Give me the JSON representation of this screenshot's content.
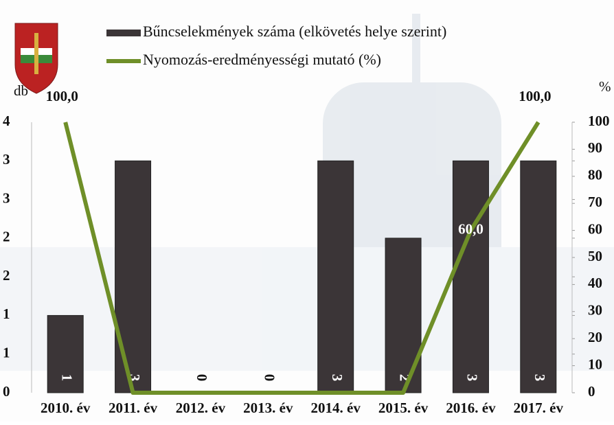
{
  "chart_data": {
    "type": "bar-line",
    "categories": [
      "2010. év",
      "2011. év",
      "2012. év",
      "2013. év",
      "2014. év",
      "2015. év",
      "2016. év",
      "2017. év"
    ],
    "series": [
      {
        "name": "Bűncselekmények száma (elkövetés helye szerint)",
        "type": "bar",
        "color": "#3b3537",
        "values": [
          1,
          3,
          0,
          0,
          3,
          2,
          3,
          3
        ]
      },
      {
        "name": "Nyomozás-eredményességi mutató (%)",
        "type": "line",
        "axis": "y2",
        "color": "#6f8f28",
        "values": [
          100,
          0,
          0,
          0,
          0,
          0,
          60,
          100
        ],
        "value_labels": [
          "100,0",
          null,
          null,
          null,
          null,
          null,
          "60,0",
          "100,0"
        ]
      }
    ],
    "ylabel": "db",
    "y2label": "%",
    "ylim": [
      0,
      3.5
    ],
    "yticks": [
      0,
      {
        "value": 0.5,
        "label": "1"
      },
      1,
      {
        "value": 1.5,
        "label": "2"
      },
      2,
      {
        "value": 2.5,
        "label": "3"
      },
      3,
      {
        "value": 3.5,
        "label": "4"
      }
    ],
    "y2lim": [
      0,
      100
    ],
    "y2ticks": [
      0,
      10,
      20,
      30,
      40,
      50,
      60,
      70,
      80,
      90,
      100
    ]
  }
}
